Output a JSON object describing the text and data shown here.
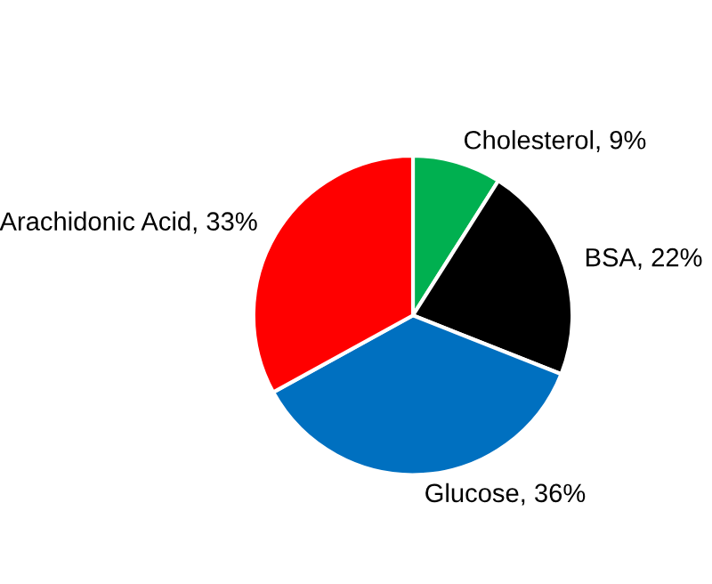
{
  "chart_data": {
    "type": "pie",
    "categories": [
      "Cholesterol",
      "BSA",
      "Glucose",
      "Arachidonic Acid"
    ],
    "values": [
      9,
      22,
      36,
      33
    ],
    "value_labels": [
      "9%",
      "22%",
      "36%",
      "33%"
    ],
    "colors": [
      "#00b050",
      "#000000",
      "#0070c0",
      "#ff0000"
    ]
  }
}
